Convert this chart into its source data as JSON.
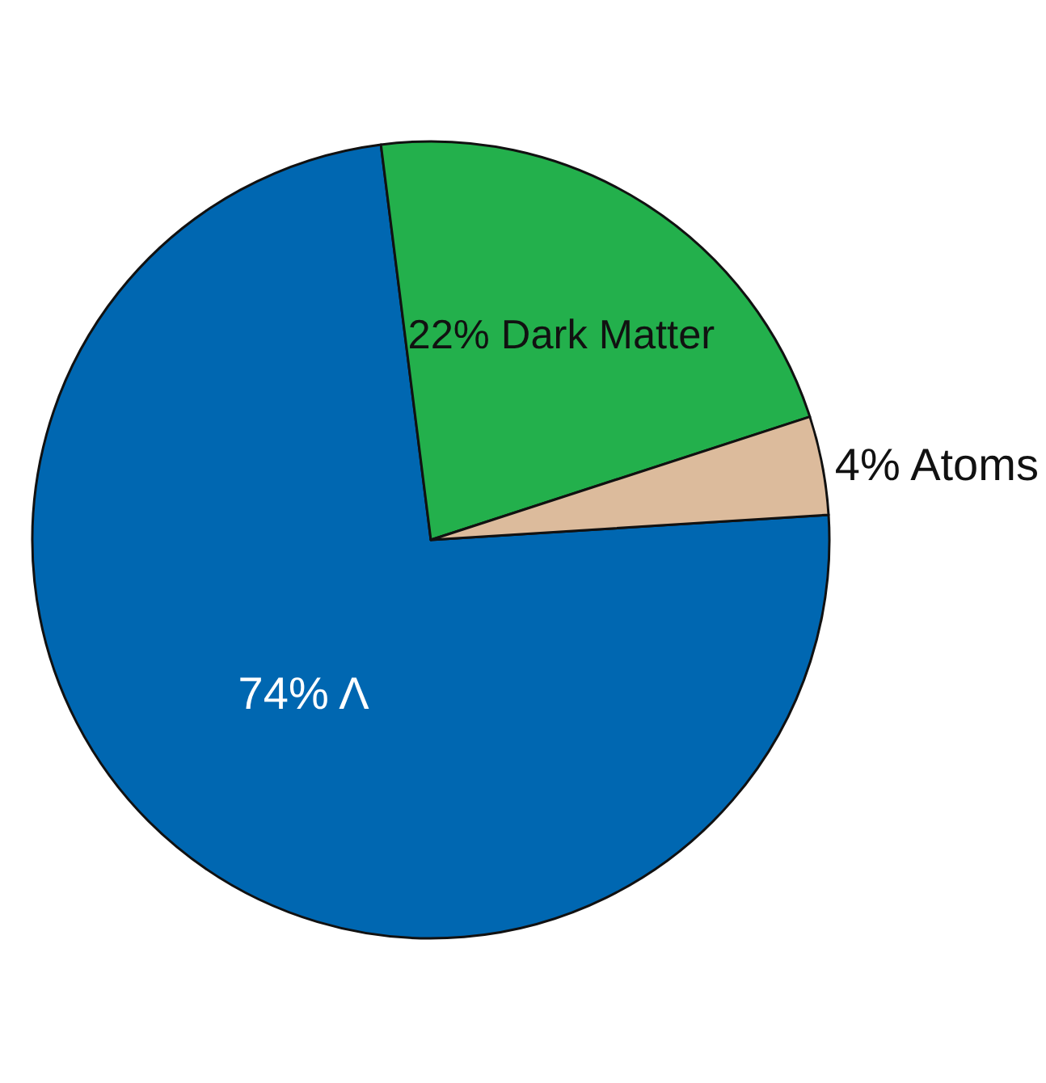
{
  "chart_data": {
    "type": "pie",
    "categories": [
      "Λ",
      "Dark Matter",
      "Atoms"
    ],
    "values": [
      74,
      22,
      4
    ],
    "value_labels": [
      "74%",
      "22%",
      "4%"
    ],
    "colors": [
      "#0067b1",
      "#23b04c",
      "#dcbb9c"
    ],
    "legend": false
  }
}
